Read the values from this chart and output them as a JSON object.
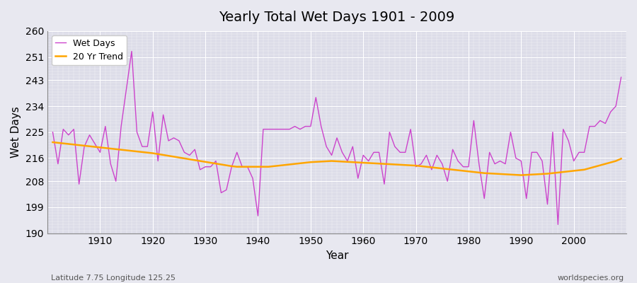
{
  "title": "Yearly Total Wet Days 1901 - 2009",
  "xlabel": "Year",
  "ylabel": "Wet Days",
  "footnote_left": "Latitude 7.75 Longitude 125.25",
  "footnote_right": "worldspecies.org",
  "line_color": "#CC44CC",
  "trend_color": "#FFA500",
  "bg_color": "#DCDCE8",
  "fig_color": "#E8E8F0",
  "ylim": [
    190,
    260
  ],
  "yticks": [
    190,
    199,
    208,
    216,
    225,
    234,
    243,
    251,
    260
  ],
  "xticks": [
    1910,
    1920,
    1930,
    1940,
    1950,
    1960,
    1970,
    1980,
    1990,
    2000
  ],
  "years": [
    1901,
    1902,
    1903,
    1904,
    1905,
    1906,
    1907,
    1908,
    1909,
    1910,
    1911,
    1912,
    1913,
    1914,
    1915,
    1916,
    1917,
    1918,
    1919,
    1920,
    1921,
    1922,
    1923,
    1924,
    1925,
    1926,
    1927,
    1928,
    1929,
    1930,
    1931,
    1932,
    1933,
    1934,
    1935,
    1936,
    1937,
    1938,
    1939,
    1940,
    1941,
    1942,
    1943,
    1944,
    1945,
    1946,
    1947,
    1948,
    1949,
    1950,
    1951,
    1952,
    1953,
    1954,
    1955,
    1956,
    1957,
    1958,
    1959,
    1960,
    1961,
    1962,
    1963,
    1964,
    1965,
    1966,
    1967,
    1968,
    1969,
    1970,
    1971,
    1972,
    1973,
    1974,
    1975,
    1976,
    1977,
    1978,
    1979,
    1980,
    1981,
    1982,
    1983,
    1984,
    1985,
    1986,
    1987,
    1988,
    1989,
    1990,
    1991,
    1992,
    1993,
    1994,
    1995,
    1996,
    1997,
    1998,
    1999,
    2000,
    2001,
    2002,
    2003,
    2004,
    2005,
    2006,
    2007,
    2008,
    2009
  ],
  "wet_days": [
    225,
    214,
    226,
    224,
    226,
    207,
    220,
    224,
    221,
    218,
    227,
    214,
    208,
    227,
    240,
    253,
    225,
    220,
    220,
    232,
    215,
    231,
    222,
    223,
    222,
    218,
    217,
    219,
    212,
    213,
    213,
    215,
    204,
    205,
    213,
    218,
    213,
    213,
    209,
    196,
    226,
    226,
    226,
    226,
    226,
    226,
    227,
    226,
    227,
    227,
    237,
    227,
    220,
    217,
    223,
    218,
    215,
    220,
    209,
    217,
    215,
    218,
    218,
    207,
    225,
    220,
    218,
    218,
    226,
    213,
    214,
    217,
    212,
    217,
    214,
    208,
    219,
    215,
    213,
    213,
    229,
    214,
    202,
    218,
    214,
    215,
    214,
    225,
    216,
    215,
    202,
    218,
    218,
    215,
    200,
    225,
    193,
    226,
    222,
    215,
    218,
    218,
    227,
    227,
    229,
    228,
    232,
    234,
    244
  ],
  "trend": [
    221.5,
    221.3,
    221.1,
    220.9,
    220.7,
    220.5,
    220.3,
    220.1,
    219.9,
    219.7,
    219.5,
    219.3,
    219.1,
    218.9,
    218.7,
    218.5,
    218.3,
    218.1,
    217.9,
    217.7,
    217.4,
    217.1,
    216.8,
    216.5,
    216.2,
    215.9,
    215.6,
    215.3,
    215.0,
    214.7,
    214.4,
    214.1,
    213.8,
    213.5,
    213.2,
    213.0,
    213.0,
    213.0,
    213.0,
    213.0,
    213.0,
    213.0,
    213.2,
    213.4,
    213.6,
    213.8,
    214.0,
    214.2,
    214.4,
    214.6,
    214.7,
    214.8,
    214.9,
    215.0,
    214.9,
    214.8,
    214.7,
    214.6,
    214.5,
    214.4,
    214.3,
    214.2,
    214.1,
    214.0,
    213.9,
    213.8,
    213.7,
    213.6,
    213.5,
    213.4,
    213.2,
    213.0,
    212.8,
    212.6,
    212.4,
    212.2,
    212.0,
    211.8,
    211.6,
    211.4,
    211.2,
    211.0,
    210.8,
    210.7,
    210.6,
    210.5,
    210.4,
    210.3,
    210.2,
    210.1,
    210.2,
    210.3,
    210.4,
    210.5,
    210.6,
    210.8,
    211.0,
    211.2,
    211.4,
    211.6,
    211.8,
    212.0,
    212.5,
    213.0,
    213.5,
    214.0,
    214.5,
    215.0,
    215.8
  ]
}
